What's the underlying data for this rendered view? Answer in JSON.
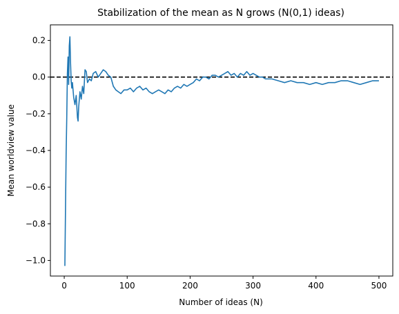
{
  "chart_data": {
    "type": "line",
    "title": "Stabilization of the mean as N grows (N(0,1) ideas)",
    "xlabel": "Number of ideas (N)",
    "ylabel": "Mean worldview value",
    "xlim": [
      -22,
      522
    ],
    "ylim": [
      -1.085,
      0.285
    ],
    "xticks": [
      0,
      100,
      200,
      300,
      400,
      500
    ],
    "yticks": [
      0.2,
      0.0,
      -0.2,
      -0.4,
      -0.6,
      -0.8,
      -1.0
    ],
    "xtick_labels": [
      "0",
      "100",
      "200",
      "300",
      "400",
      "500"
    ],
    "ytick_labels": [
      "0.2",
      "0.0",
      "−0.2",
      "−0.4",
      "−0.6",
      "−0.8",
      "−1.0"
    ],
    "grid": false,
    "reference_line": {
      "y": 0.0,
      "style": "dashed",
      "color": "#000000"
    },
    "series": [
      {
        "color": "#1f77b4",
        "x": [
          1,
          2,
          3,
          4,
          5,
          6,
          7,
          8,
          9,
          10,
          11,
          12,
          13,
          15,
          17,
          19,
          21,
          22,
          23,
          25,
          27,
          29,
          31,
          33,
          35,
          37,
          40,
          43,
          46,
          50,
          54,
          58,
          62,
          66,
          70,
          74,
          78,
          82,
          86,
          90,
          95,
          100,
          105,
          110,
          115,
          120,
          125,
          130,
          135,
          140,
          145,
          150,
          155,
          160,
          165,
          170,
          175,
          180,
          185,
          190,
          195,
          200,
          205,
          210,
          215,
          220,
          225,
          230,
          235,
          240,
          245,
          250,
          255,
          260,
          265,
          270,
          275,
          280,
          285,
          290,
          295,
          300,
          305,
          310,
          315,
          320,
          330,
          340,
          350,
          360,
          370,
          380,
          390,
          400,
          410,
          420,
          430,
          440,
          450,
          460,
          470,
          480,
          490,
          500
        ],
        "y": [
          -1.03,
          -0.72,
          -0.42,
          -0.22,
          0.02,
          0.11,
          -0.04,
          0.17,
          0.22,
          0.08,
          -0.02,
          -0.06,
          -0.03,
          -0.11,
          -0.15,
          -0.1,
          -0.22,
          -0.24,
          -0.16,
          -0.08,
          -0.12,
          -0.05,
          -0.09,
          0.04,
          0.03,
          -0.03,
          -0.01,
          -0.02,
          0.02,
          0.03,
          0.0,
          0.02,
          0.04,
          0.03,
          0.01,
          0.0,
          -0.05,
          -0.07,
          -0.08,
          -0.09,
          -0.07,
          -0.07,
          -0.06,
          -0.08,
          -0.06,
          -0.05,
          -0.07,
          -0.06,
          -0.08,
          -0.09,
          -0.08,
          -0.07,
          -0.08,
          -0.09,
          -0.07,
          -0.08,
          -0.06,
          -0.05,
          -0.06,
          -0.04,
          -0.05,
          -0.04,
          -0.03,
          -0.01,
          -0.02,
          0.0,
          0.0,
          -0.01,
          0.01,
          0.01,
          0.0,
          0.01,
          0.02,
          0.03,
          0.01,
          0.02,
          0.0,
          0.02,
          0.01,
          0.03,
          0.01,
          0.02,
          0.01,
          0.0,
          0.0,
          -0.01,
          -0.01,
          -0.02,
          -0.03,
          -0.02,
          -0.03,
          -0.03,
          -0.04,
          -0.03,
          -0.04,
          -0.03,
          -0.03,
          -0.02,
          -0.02,
          -0.03,
          -0.04,
          -0.03,
          -0.02,
          -0.02
        ]
      }
    ]
  }
}
